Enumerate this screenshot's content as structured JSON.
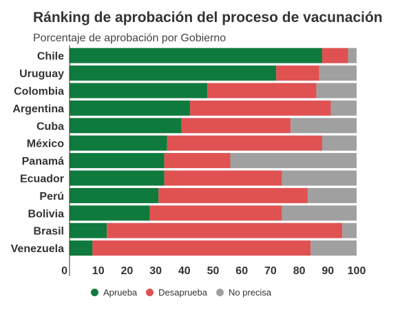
{
  "chart_data": {
    "type": "bar",
    "orientation": "horizontal",
    "stacked": true,
    "title": "Ránking de aprobación del proceso de vacunación",
    "subtitle": "Porcentaje de aprobación por Gobierno",
    "categories": [
      "Chile",
      "Uruguay",
      "Colombia",
      "Argentina",
      "Cuba",
      "México",
      "Panamá",
      "Ecuador",
      "Perú",
      "Bolivia",
      "Brasil",
      "Venezuela"
    ],
    "series": [
      {
        "name": "Aprueba",
        "color": "#0f7a3d",
        "values": [
          88,
          72,
          48,
          42,
          39,
          34,
          33,
          33,
          31,
          28,
          13,
          8
        ]
      },
      {
        "name": "Desaprueba",
        "color": "#e05252",
        "values": [
          9,
          15,
          38,
          49,
          38,
          54,
          23,
          41,
          52,
          46,
          82,
          76
        ]
      },
      {
        "name": "No precisa",
        "color": "#a0a0a0",
        "values": [
          3,
          13,
          14,
          9,
          23,
          12,
          44,
          26,
          17,
          26,
          5,
          16
        ]
      }
    ],
    "xlim": [
      0,
      100
    ],
    "xticks": [
      0,
      10,
      20,
      30,
      40,
      50,
      60,
      70,
      80,
      90,
      100
    ],
    "legend_position": "bottom"
  }
}
